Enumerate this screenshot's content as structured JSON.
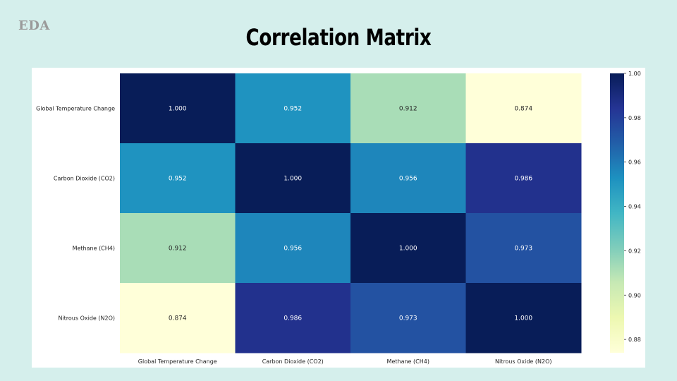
{
  "slide": {
    "brand": "EDA",
    "title": "Correlation Matrix"
  },
  "chart_data": {
    "type": "heatmap",
    "title": "",
    "rows": [
      "Global Temperature Change",
      "Carbon Dioxide (CO2)",
      "Methane (CH4)",
      "Nitrous Oxide (N2O)"
    ],
    "columns": [
      "Global Temperature Change",
      "Carbon Dioxide (CO2)",
      "Methane (CH4)",
      "Nitrous Oxide (N2O)"
    ],
    "values": [
      [
        1.0,
        0.952,
        0.912,
        0.874
      ],
      [
        0.952,
        1.0,
        0.956,
        0.986
      ],
      [
        0.912,
        0.956,
        1.0,
        0.973
      ],
      [
        0.874,
        0.986,
        0.973,
        1.0
      ]
    ],
    "value_format": "3 decimals",
    "colormap": "YlGnBu",
    "colorbar": {
      "range": [
        0.874,
        1.0
      ],
      "ticks": [
        1.0,
        0.98,
        0.96,
        0.94,
        0.92,
        0.9,
        0.88
      ],
      "tick_labels": [
        "1.00",
        "0.98",
        "0.96",
        "0.94",
        "0.92",
        "0.90",
        "0.88"
      ]
    }
  }
}
